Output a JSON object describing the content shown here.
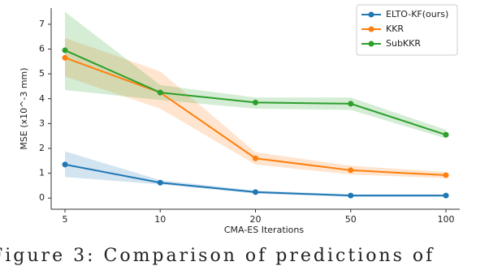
{
  "chart_data": {
    "type": "line_band",
    "xlabel": "CMA-ES Iterations",
    "ylabel": "MSE (x10^-3 mm)",
    "categories": [
      "5",
      "10",
      "20",
      "50",
      "100"
    ],
    "series": [
      {
        "name": "ELTO-KF(ours)",
        "color": "#1f77b4",
        "values": [
          1.35,
          0.62,
          0.24,
          0.1,
          0.1
        ],
        "lower": [
          0.85,
          0.55,
          0.18,
          0.05,
          0.05
        ],
        "upper": [
          1.88,
          0.72,
          0.3,
          0.15,
          0.15
        ]
      },
      {
        "name": "KKR",
        "color": "#ff7f0e",
        "values": [
          5.65,
          4.25,
          1.6,
          1.12,
          0.92
        ],
        "lower": [
          4.9,
          3.6,
          1.35,
          0.95,
          0.8
        ],
        "upper": [
          6.45,
          5.1,
          1.85,
          1.3,
          1.05
        ]
      },
      {
        "name": "SubKKR",
        "color": "#2ca02c",
        "values": [
          5.95,
          4.25,
          3.85,
          3.8,
          2.55
        ],
        "lower": [
          4.35,
          3.95,
          3.6,
          3.55,
          2.4
        ],
        "upper": [
          7.5,
          4.55,
          4.05,
          4.05,
          2.75
        ]
      }
    ],
    "ylim": [
      -0.45,
      7.65
    ],
    "yticks": [
      0,
      1,
      2,
      3,
      4,
      5,
      6,
      7
    ],
    "legend": "upper right",
    "caption": "Figure 3: Comparison of predictions of"
  }
}
